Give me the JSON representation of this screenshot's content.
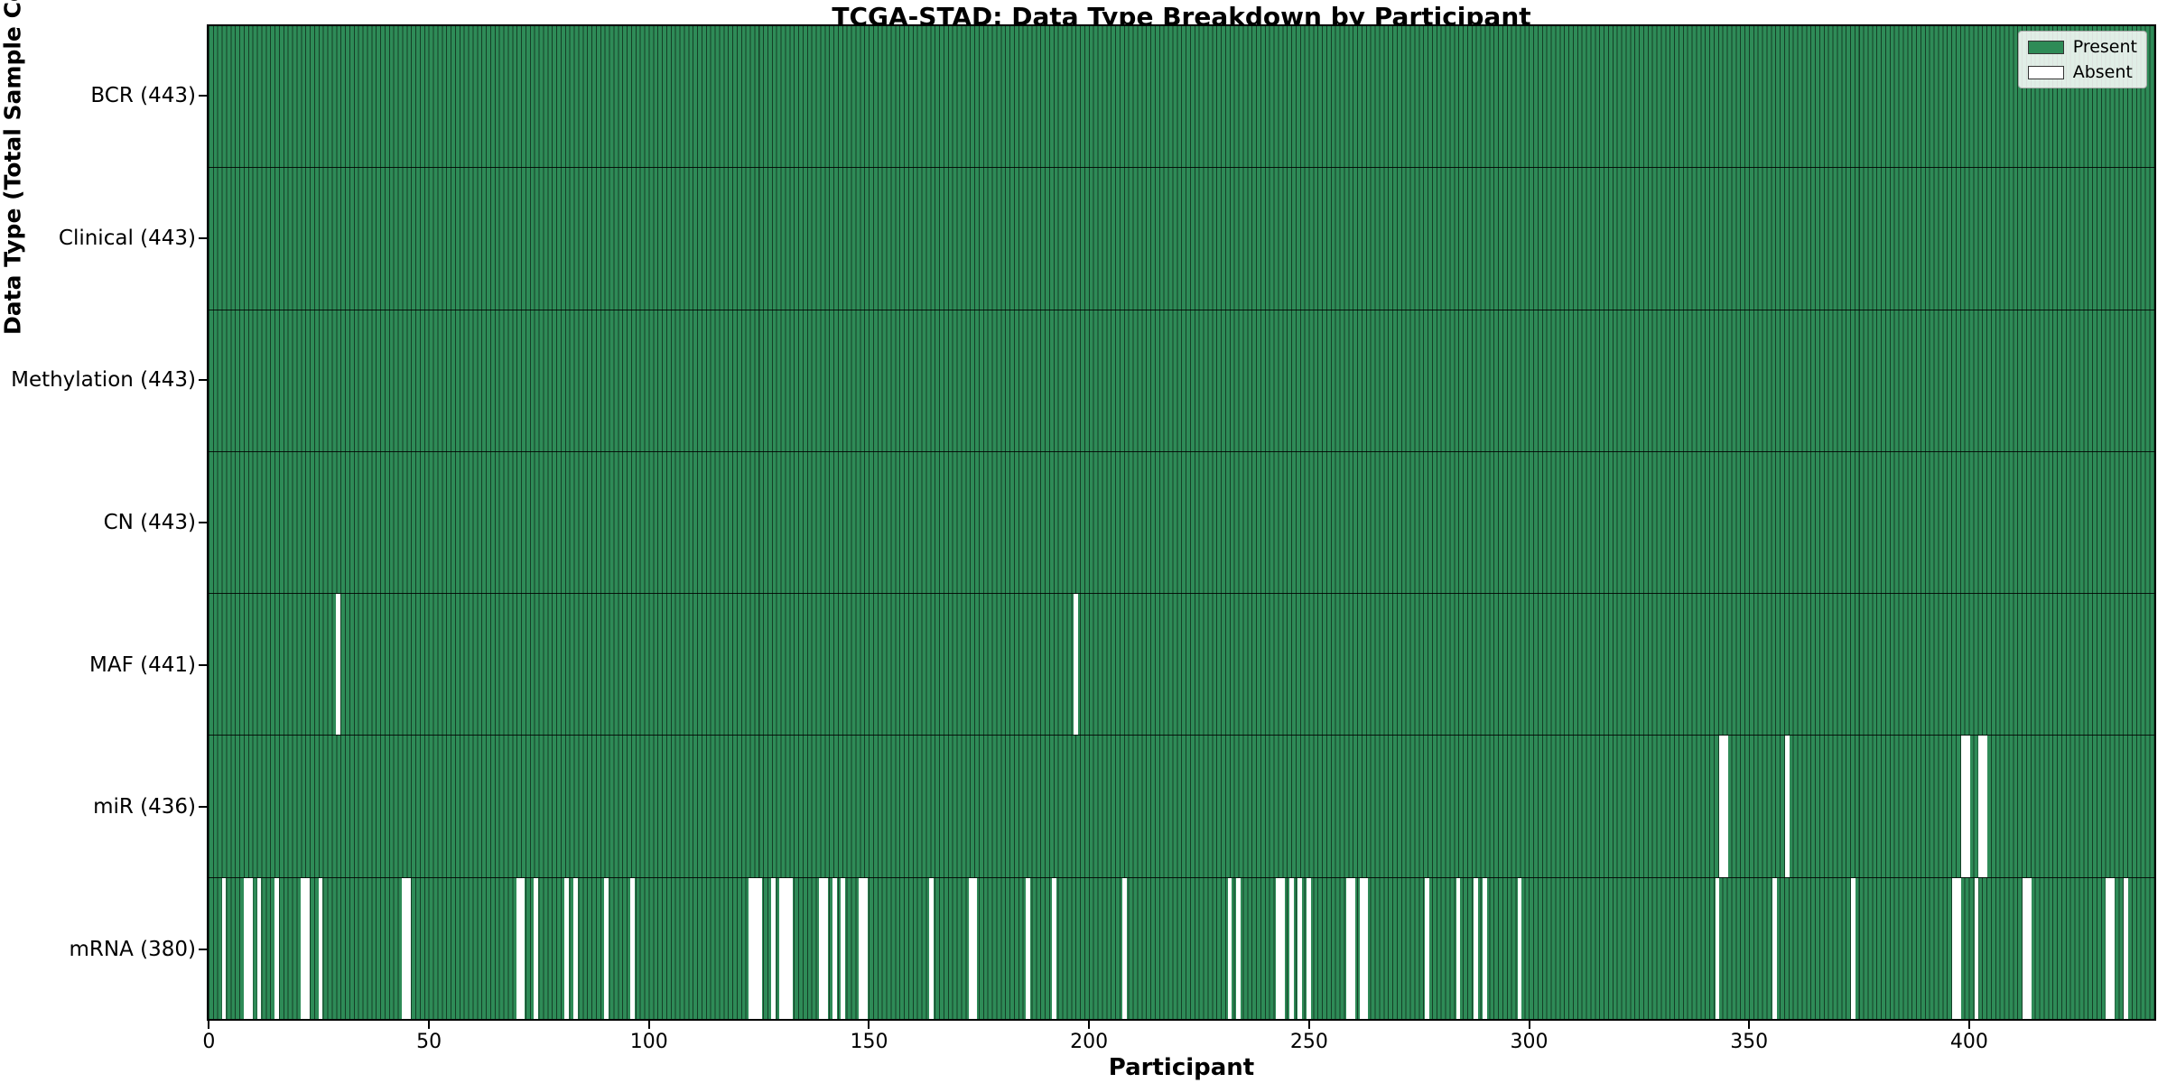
{
  "title": "TCGA-STAD: Data Type Breakdown by Participant",
  "xlabel": "Participant",
  "ylabel": "Data Type (Total Sample Count)",
  "legend": {
    "present_label": "Present",
    "absent_label": "Absent",
    "present_color": "#2e8b57",
    "absent_color": "#ffffff"
  },
  "chart_data": {
    "type": "heatmap",
    "x_axis_label": "Participant",
    "y_axis_label": "Data Type (Total Sample Count)",
    "x_ticks": [
      0,
      50,
      100,
      150,
      200,
      250,
      300,
      350,
      400
    ],
    "n_participants": 443,
    "xlim": [
      -0.5,
      442.5
    ],
    "present_color": "#2e8b57",
    "absent_color": "#ffffff",
    "bar_edge_color": "rgba(0,0,0,0.55)",
    "legend_position": "upper right",
    "grid": false,
    "rows": [
      {
        "label": "BCR (443)",
        "name": "BCR",
        "present_count": 443,
        "absent_participants": []
      },
      {
        "label": "Clinical (443)",
        "name": "Clinical",
        "present_count": 443,
        "absent_participants": []
      },
      {
        "label": "Methylation (443)",
        "name": "Methylation",
        "present_count": 443,
        "absent_participants": []
      },
      {
        "label": "CN (443)",
        "name": "CN",
        "present_count": 443,
        "absent_participants": []
      },
      {
        "label": "MAF (441)",
        "name": "MAF",
        "present_count": 441,
        "absent_participants": [
          29,
          197
        ]
      },
      {
        "label": "miR (436)",
        "name": "miR",
        "present_count": 436,
        "absent_participants": [
          344,
          345,
          359,
          399,
          400,
          403,
          404
        ]
      },
      {
        "label": "mRNA (380)",
        "name": "mRNA",
        "present_count": 380,
        "absent_participants": [
          3,
          8,
          9,
          11,
          15,
          21,
          22,
          25,
          44,
          45,
          70,
          71,
          74,
          81,
          83,
          90,
          96,
          123,
          124,
          125,
          128,
          130,
          131,
          132,
          139,
          140,
          142,
          144,
          148,
          149,
          164,
          173,
          174,
          186,
          192,
          208,
          232,
          234,
          243,
          244,
          246,
          248,
          250,
          259,
          260,
          262,
          263,
          277,
          284,
          288,
          290,
          298,
          343,
          356,
          374,
          397,
          398,
          402,
          413,
          414,
          432,
          433,
          436
        ]
      }
    ]
  }
}
